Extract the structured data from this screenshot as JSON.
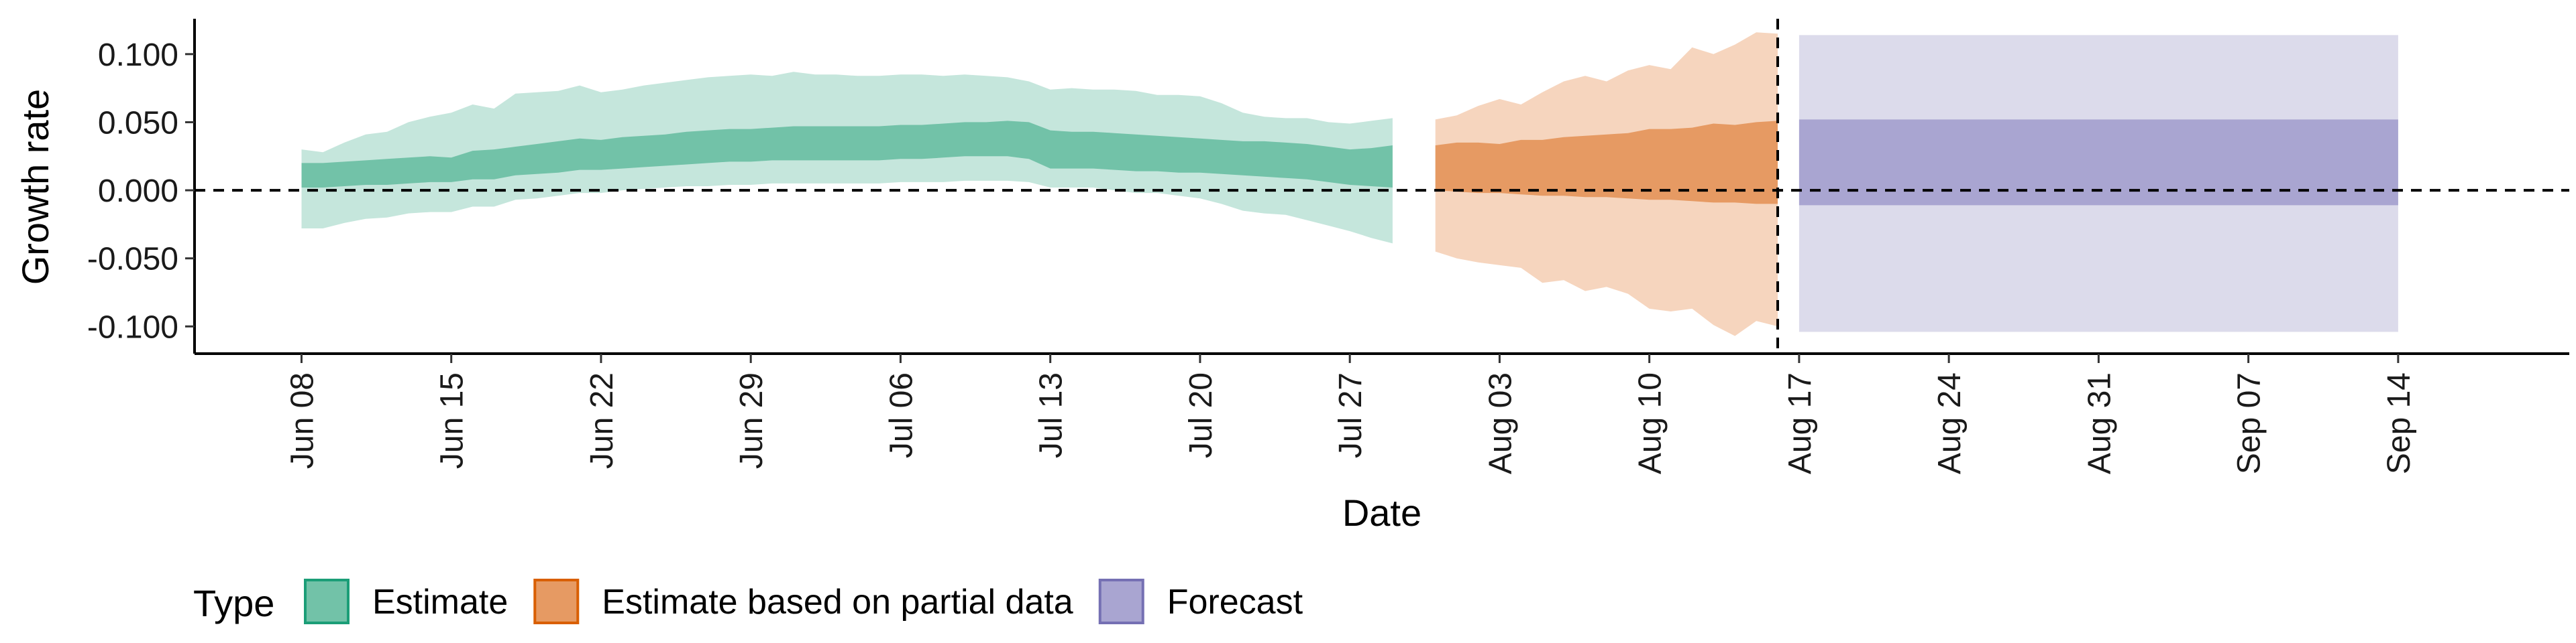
{
  "chart_data": {
    "type": "area",
    "xlabel": "Date",
    "ylabel": "Growth rate",
    "ylim": [
      -0.12,
      0.125
    ],
    "x_tick_labels": [
      "Jun 08",
      "Jun 15",
      "Jun 22",
      "Jun 29",
      "Jul 06",
      "Jul 13",
      "Jul 20",
      "Jul 27",
      "Aug 03",
      "Aug 10",
      "Aug 17",
      "Aug 24",
      "Aug 31",
      "Sep 07",
      "Sep 14"
    ],
    "x_tick_dates": [
      "2020-06-08",
      "2020-06-15",
      "2020-06-22",
      "2020-06-29",
      "2020-07-06",
      "2020-07-13",
      "2020-07-20",
      "2020-07-27",
      "2020-08-03",
      "2020-08-10",
      "2020-08-17",
      "2020-08-24",
      "2020-08-31",
      "2020-09-07",
      "2020-09-14"
    ],
    "xlim": [
      "2020-06-03",
      "2020-09-22"
    ],
    "y_ticks": [
      -0.1,
      -0.05,
      0.0,
      0.05,
      0.1
    ],
    "y_tick_labels": [
      "-0.100",
      "-0.050",
      "0.000",
      "0.050",
      "0.100"
    ],
    "reference_lines": {
      "horizontal_y": 0.0,
      "vertical_date": "2020-08-16"
    },
    "legend": {
      "title": "Type",
      "position": "bottom",
      "entries": [
        {
          "label": "Estimate",
          "fill": "#72c2a8",
          "border": "#1b9e77"
        },
        {
          "label": "Estimate based on partial data",
          "fill": "#e69a63",
          "border": "#d95f02"
        },
        {
          "label": "Forecast",
          "fill": "#a9a5d1",
          "border": "#7570b3"
        }
      ]
    },
    "series": [
      {
        "name": "Estimate",
        "color_inner": "#72c2a8",
        "color_outer": "#c5e6dc",
        "points": [
          {
            "x": "2020-06-08",
            "lo90": -0.028,
            "lo50": 0.002,
            "hi50": 0.02,
            "hi90": 0.03
          },
          {
            "x": "2020-06-09",
            "lo90": -0.028,
            "lo50": 0.002,
            "hi50": 0.02,
            "hi90": 0.028
          },
          {
            "x": "2020-06-10",
            "lo90": -0.024,
            "lo50": 0.003,
            "hi50": 0.021,
            "hi90": 0.035
          },
          {
            "x": "2020-06-11",
            "lo90": -0.021,
            "lo50": 0.004,
            "hi50": 0.022,
            "hi90": 0.041
          },
          {
            "x": "2020-06-12",
            "lo90": -0.02,
            "lo50": 0.004,
            "hi50": 0.023,
            "hi90": 0.043
          },
          {
            "x": "2020-06-13",
            "lo90": -0.017,
            "lo50": 0.005,
            "hi50": 0.024,
            "hi90": 0.05
          },
          {
            "x": "2020-06-14",
            "lo90": -0.016,
            "lo50": 0.006,
            "hi50": 0.025,
            "hi90": 0.054
          },
          {
            "x": "2020-06-15",
            "lo90": -0.016,
            "lo50": 0.006,
            "hi50": 0.024,
            "hi90": 0.057
          },
          {
            "x": "2020-06-16",
            "lo90": -0.012,
            "lo50": 0.008,
            "hi50": 0.029,
            "hi90": 0.063
          },
          {
            "x": "2020-06-17",
            "lo90": -0.012,
            "lo50": 0.008,
            "hi50": 0.03,
            "hi90": 0.06
          },
          {
            "x": "2020-06-18",
            "lo90": -0.007,
            "lo50": 0.011,
            "hi50": 0.032,
            "hi90": 0.071
          },
          {
            "x": "2020-06-19",
            "lo90": -0.006,
            "lo50": 0.012,
            "hi50": 0.034,
            "hi90": 0.072
          },
          {
            "x": "2020-06-20",
            "lo90": -0.004,
            "lo50": 0.013,
            "hi50": 0.036,
            "hi90": 0.073
          },
          {
            "x": "2020-06-21",
            "lo90": -0.002,
            "lo50": 0.015,
            "hi50": 0.038,
            "hi90": 0.077
          },
          {
            "x": "2020-06-22",
            "lo90": -0.002,
            "lo50": 0.015,
            "hi50": 0.037,
            "hi90": 0.072
          },
          {
            "x": "2020-06-23",
            "lo90": 0.0,
            "lo50": 0.016,
            "hi50": 0.039,
            "hi90": 0.074
          },
          {
            "x": "2020-06-24",
            "lo90": 0.001,
            "lo50": 0.017,
            "hi50": 0.04,
            "hi90": 0.077
          },
          {
            "x": "2020-06-25",
            "lo90": 0.002,
            "lo50": 0.018,
            "hi50": 0.041,
            "hi90": 0.079
          },
          {
            "x": "2020-06-26",
            "lo90": 0.003,
            "lo50": 0.019,
            "hi50": 0.043,
            "hi90": 0.081
          },
          {
            "x": "2020-06-27",
            "lo90": 0.003,
            "lo50": 0.02,
            "hi50": 0.044,
            "hi90": 0.083
          },
          {
            "x": "2020-06-28",
            "lo90": 0.004,
            "lo50": 0.021,
            "hi50": 0.045,
            "hi90": 0.084
          },
          {
            "x": "2020-06-29",
            "lo90": 0.004,
            "lo50": 0.021,
            "hi50": 0.045,
            "hi90": 0.085
          },
          {
            "x": "2020-06-30",
            "lo90": 0.005,
            "lo50": 0.022,
            "hi50": 0.046,
            "hi90": 0.084
          },
          {
            "x": "2020-07-01",
            "lo90": 0.005,
            "lo50": 0.022,
            "hi50": 0.047,
            "hi90": 0.087
          },
          {
            "x": "2020-07-02",
            "lo90": 0.005,
            "lo50": 0.022,
            "hi50": 0.047,
            "hi90": 0.085
          },
          {
            "x": "2020-07-03",
            "lo90": 0.005,
            "lo50": 0.022,
            "hi50": 0.047,
            "hi90": 0.085
          },
          {
            "x": "2020-07-04",
            "lo90": 0.005,
            "lo50": 0.022,
            "hi50": 0.047,
            "hi90": 0.084
          },
          {
            "x": "2020-07-05",
            "lo90": 0.005,
            "lo50": 0.022,
            "hi50": 0.047,
            "hi90": 0.084
          },
          {
            "x": "2020-07-06",
            "lo90": 0.006,
            "lo50": 0.023,
            "hi50": 0.048,
            "hi90": 0.085
          },
          {
            "x": "2020-07-07",
            "lo90": 0.006,
            "lo50": 0.023,
            "hi50": 0.048,
            "hi90": 0.085
          },
          {
            "x": "2020-07-08",
            "lo90": 0.006,
            "lo50": 0.024,
            "hi50": 0.049,
            "hi90": 0.084
          },
          {
            "x": "2020-07-09",
            "lo90": 0.007,
            "lo50": 0.025,
            "hi50": 0.05,
            "hi90": 0.085
          },
          {
            "x": "2020-07-10",
            "lo90": 0.007,
            "lo50": 0.025,
            "hi50": 0.05,
            "hi90": 0.084
          },
          {
            "x": "2020-07-11",
            "lo90": 0.007,
            "lo50": 0.025,
            "hi50": 0.051,
            "hi90": 0.083
          },
          {
            "x": "2020-07-12",
            "lo90": 0.006,
            "lo50": 0.023,
            "hi50": 0.05,
            "hi90": 0.08
          },
          {
            "x": "2020-07-13",
            "lo90": 0.002,
            "lo50": 0.016,
            "hi50": 0.044,
            "hi90": 0.074
          },
          {
            "x": "2020-07-14",
            "lo90": 0.002,
            "lo50": 0.016,
            "hi50": 0.043,
            "hi90": 0.075
          },
          {
            "x": "2020-07-15",
            "lo90": 0.002,
            "lo50": 0.016,
            "hi50": 0.043,
            "hi90": 0.074
          },
          {
            "x": "2020-07-16",
            "lo90": 0.0,
            "lo50": 0.015,
            "hi50": 0.042,
            "hi90": 0.074
          },
          {
            "x": "2020-07-17",
            "lo90": -0.002,
            "lo50": 0.014,
            "hi50": 0.041,
            "hi90": 0.073
          },
          {
            "x": "2020-07-18",
            "lo90": -0.002,
            "lo50": 0.014,
            "hi50": 0.04,
            "hi90": 0.07
          },
          {
            "x": "2020-07-19",
            "lo90": -0.004,
            "lo50": 0.013,
            "hi50": 0.039,
            "hi90": 0.07
          },
          {
            "x": "2020-07-20",
            "lo90": -0.006,
            "lo50": 0.013,
            "hi50": 0.038,
            "hi90": 0.069
          },
          {
            "x": "2020-07-21",
            "lo90": -0.01,
            "lo50": 0.012,
            "hi50": 0.037,
            "hi90": 0.064
          },
          {
            "x": "2020-07-22",
            "lo90": -0.015,
            "lo50": 0.011,
            "hi50": 0.036,
            "hi90": 0.057
          },
          {
            "x": "2020-07-23",
            "lo90": -0.017,
            "lo50": 0.01,
            "hi50": 0.036,
            "hi90": 0.054
          },
          {
            "x": "2020-07-24",
            "lo90": -0.018,
            "lo50": 0.009,
            "hi50": 0.035,
            "hi90": 0.053
          },
          {
            "x": "2020-07-25",
            "lo90": -0.022,
            "lo50": 0.008,
            "hi50": 0.034,
            "hi90": 0.053
          },
          {
            "x": "2020-07-26",
            "lo90": -0.026,
            "lo50": 0.006,
            "hi50": 0.032,
            "hi90": 0.05
          },
          {
            "x": "2020-07-27",
            "lo90": -0.03,
            "lo50": 0.004,
            "hi50": 0.03,
            "hi90": 0.049
          },
          {
            "x": "2020-07-28",
            "lo90": -0.035,
            "lo50": 0.003,
            "hi50": 0.031,
            "hi90": 0.051
          },
          {
            "x": "2020-07-29",
            "lo90": -0.039,
            "lo50": 0.002,
            "hi50": 0.033,
            "hi90": 0.053
          }
        ]
      },
      {
        "name": "Estimate based on partial data",
        "color_inner": "#e69a63",
        "color_outer": "#f6d5be",
        "points": [
          {
            "x": "2020-07-31",
            "lo90": -0.045,
            "lo50": 0.0,
            "hi50": 0.033,
            "hi90": 0.052
          },
          {
            "x": "2020-08-01",
            "lo90": -0.05,
            "lo50": -0.001,
            "hi50": 0.035,
            "hi90": 0.055
          },
          {
            "x": "2020-08-02",
            "lo90": -0.053,
            "lo50": -0.002,
            "hi50": 0.035,
            "hi90": 0.062
          },
          {
            "x": "2020-08-03",
            "lo90": -0.055,
            "lo50": -0.002,
            "hi50": 0.034,
            "hi90": 0.067
          },
          {
            "x": "2020-08-04",
            "lo90": -0.057,
            "lo50": -0.003,
            "hi50": 0.037,
            "hi90": 0.063
          },
          {
            "x": "2020-08-05",
            "lo90": -0.068,
            "lo50": -0.004,
            "hi50": 0.037,
            "hi90": 0.072
          },
          {
            "x": "2020-08-06",
            "lo90": -0.066,
            "lo50": -0.004,
            "hi50": 0.039,
            "hi90": 0.08
          },
          {
            "x": "2020-08-07",
            "lo90": -0.074,
            "lo50": -0.005,
            "hi50": 0.04,
            "hi90": 0.084
          },
          {
            "x": "2020-08-08",
            "lo90": -0.071,
            "lo50": -0.005,
            "hi50": 0.041,
            "hi90": 0.08
          },
          {
            "x": "2020-08-09",
            "lo90": -0.076,
            "lo50": -0.006,
            "hi50": 0.042,
            "hi90": 0.088
          },
          {
            "x": "2020-08-10",
            "lo90": -0.087,
            "lo50": -0.007,
            "hi50": 0.045,
            "hi90": 0.092
          },
          {
            "x": "2020-08-11",
            "lo90": -0.089,
            "lo50": -0.007,
            "hi50": 0.045,
            "hi90": 0.089
          },
          {
            "x": "2020-08-12",
            "lo90": -0.087,
            "lo50": -0.008,
            "hi50": 0.046,
            "hi90": 0.105
          },
          {
            "x": "2020-08-13",
            "lo90": -0.099,
            "lo50": -0.009,
            "hi50": 0.049,
            "hi90": 0.1
          },
          {
            "x": "2020-08-14",
            "lo90": -0.107,
            "lo50": -0.009,
            "hi50": 0.048,
            "hi90": 0.107
          },
          {
            "x": "2020-08-15",
            "lo90": -0.096,
            "lo50": -0.01,
            "hi50": 0.05,
            "hi90": 0.116
          },
          {
            "x": "2020-08-16",
            "lo90": -0.1,
            "lo50": -0.01,
            "hi50": 0.051,
            "hi90": 0.115
          }
        ]
      },
      {
        "name": "Forecast",
        "color_inner": "#a9a5d1",
        "color_outer": "#dcdbeb",
        "points": [
          {
            "x": "2020-08-17",
            "lo90": -0.104,
            "lo50": -0.011,
            "hi50": 0.052,
            "hi90": 0.114
          },
          {
            "x": "2020-09-14",
            "lo90": -0.104,
            "lo50": -0.011,
            "hi50": 0.052,
            "hi90": 0.114
          }
        ]
      }
    ]
  }
}
